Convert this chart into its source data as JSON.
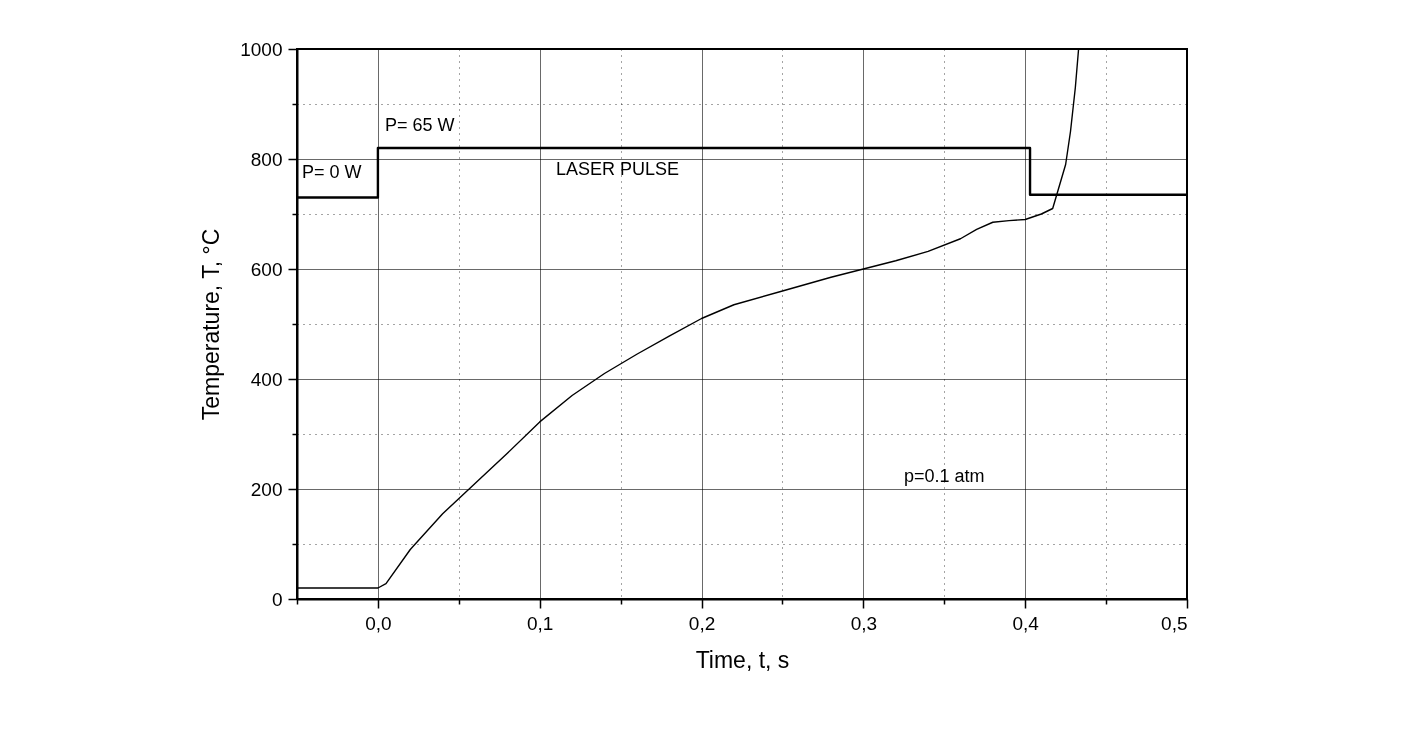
{
  "chart_data": {
    "type": "line",
    "xlabel": "Time,  t,  s",
    "ylabel": "Temperature,  T,  °C",
    "xlim": [
      -0.05,
      0.5
    ],
    "ylim": [
      0,
      1000
    ],
    "xticks": [
      {
        "value": -0.05,
        "label": null
      },
      {
        "value": 0,
        "label": "0,0"
      },
      {
        "value": 0.05,
        "label": null
      },
      {
        "value": 0.1,
        "label": "0,1"
      },
      {
        "value": 0.15,
        "label": null
      },
      {
        "value": 0.2,
        "label": "0,2"
      },
      {
        "value": 0.25,
        "label": null
      },
      {
        "value": 0.3,
        "label": "0,3"
      },
      {
        "value": 0.35,
        "label": null
      },
      {
        "value": 0.4,
        "label": "0,4"
      },
      {
        "value": 0.45,
        "label": null
      },
      {
        "value": 0.5,
        "label": "0,5"
      }
    ],
    "yticks": [
      0,
      {
        "value": 100,
        "label": null
      },
      200,
      {
        "value": 300,
        "label": null
      },
      400,
      {
        "value": 500,
        "label": null
      },
      600,
      {
        "value": 700,
        "label": null
      },
      800,
      {
        "value": 900,
        "label": null
      },
      1000
    ],
    "grid": true,
    "marker": "none",
    "series": [
      {
        "type": "step",
        "color": "#000000",
        "x": [
          -0.05,
          0,
          0.403,
          0.5
        ],
        "values": [
          730,
          820,
          735,
          735
        ]
      },
      {
        "color": "#000000",
        "x": [
          -0.05,
          0,
          0.005,
          0.02,
          0.04,
          0.06,
          0.08,
          0.1,
          0.12,
          0.14,
          0.16,
          0.18,
          0.2,
          0.22,
          0.25,
          0.28,
          0.3,
          0.32,
          0.34,
          0.36,
          0.37,
          0.38,
          0.39,
          0.4,
          0.41,
          0.417,
          0.42,
          0.425,
          0.428,
          0.431,
          0.433
        ],
        "values": [
          20,
          20,
          28,
          90,
          155,
          210,
          265,
          322,
          370,
          410,
          445,
          478,
          510,
          535,
          560,
          585,
          600,
          615,
          632,
          655,
          672,
          685,
          688,
          690,
          700,
          710,
          740,
          790,
          850,
          930,
          1000
        ]
      }
    ],
    "annotations": [
      "P= 0 W",
      "P= 65 W",
      "LASER PULSE",
      "p=0.1 atm"
    ]
  }
}
